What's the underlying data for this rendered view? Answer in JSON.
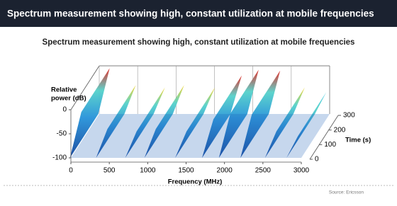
{
  "header": {
    "title": "Spectrum measurement showing high, constant utilization at mobile frequencies"
  },
  "chart_data": {
    "type": "surface3d",
    "title": "Spectrum measurement showing high, constant utilization at mobile frequencies",
    "y_label": [
      "Relative",
      "power (dB)"
    ],
    "x_label": "Frequency (MHz)",
    "z_label": "Time (s)",
    "x": [
      80,
      420,
      800,
      1050,
      1450,
      1800,
      2020,
      2300,
      2620,
      2900
    ],
    "values": [
      -5,
      -40,
      -45,
      -40,
      -45,
      -20,
      -8,
      -10,
      -45,
      -55
    ],
    "xlim": [
      0,
      3000
    ],
    "xticks": [
      0,
      500,
      1000,
      1500,
      2000,
      2500,
      3000
    ],
    "ylim": [
      -100,
      0
    ],
    "yticks": [
      0,
      -50,
      -100
    ],
    "zlim": [
      0,
      300
    ],
    "zticks": [
      0,
      100,
      200,
      300
    ]
  },
  "footer": {
    "source": "Source: Ericsson"
  }
}
